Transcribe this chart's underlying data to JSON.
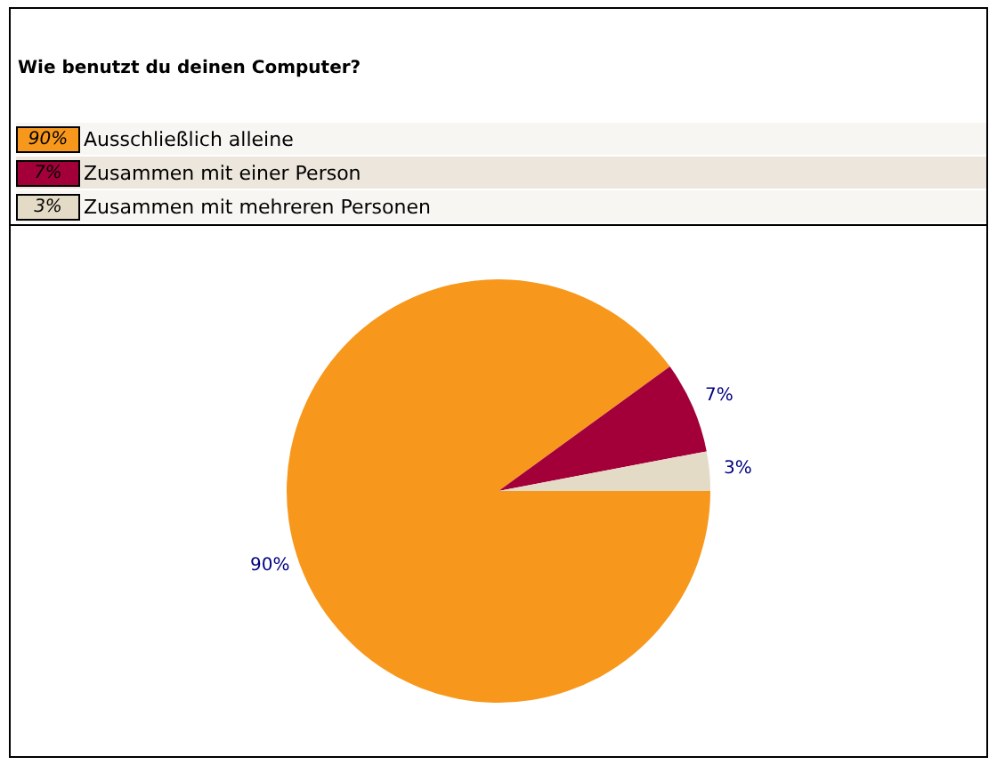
{
  "chart_data": {
    "type": "pie",
    "title": "Wie benutzt du deinen Computer?",
    "categories": [
      "Ausschließlich alleine",
      "Zusammen mit einer Person",
      "Zusammen mit mehreren Personen"
    ],
    "values": [
      90,
      7,
      3
    ],
    "colors": [
      "#f7981d",
      "#a3003a",
      "#e4dbc6"
    ],
    "value_labels": [
      "90%",
      "7%",
      "3%"
    ],
    "legend": "top left"
  }
}
